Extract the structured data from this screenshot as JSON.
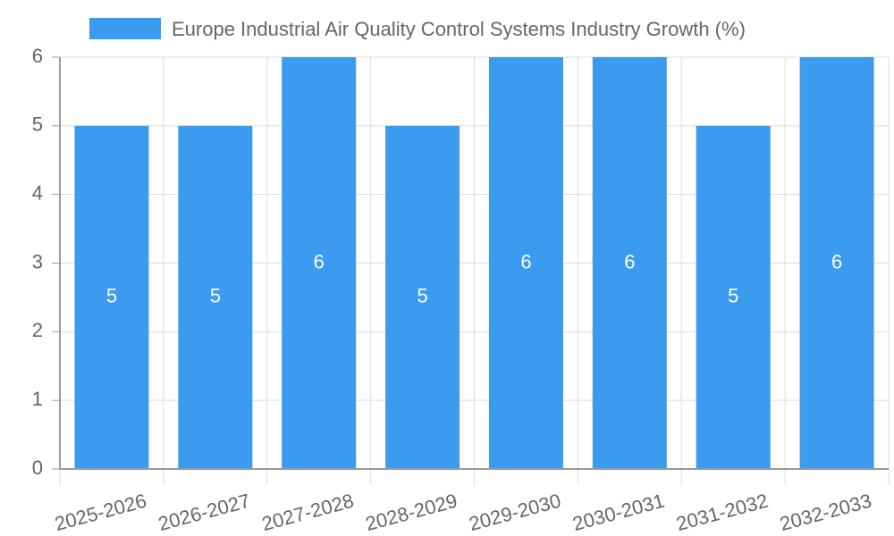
{
  "chart_data": {
    "type": "bar",
    "title": "",
    "xlabel": "",
    "ylabel": "",
    "categories": [
      "2025-2026",
      "2026-2027",
      "2027-2028",
      "2028-2029",
      "2029-2030",
      "2030-2031",
      "2031-2032",
      "2032-2033"
    ],
    "series": [
      {
        "name": "Europe Industrial Air Quality Control Systems Industry Growth (%)",
        "values": [
          5,
          5,
          6,
          5,
          6,
          6,
          5,
          6
        ],
        "color": "#3a9bef"
      }
    ],
    "ylim": [
      0,
      6
    ],
    "yticks": [
      0,
      1,
      2,
      3,
      4,
      5,
      6
    ],
    "grid": true,
    "legend_position": "top-center",
    "data_labels": true
  },
  "colors": {
    "grid": "#dddddd",
    "axis": "#999999",
    "text": "#666666",
    "label": "#ffffff"
  }
}
